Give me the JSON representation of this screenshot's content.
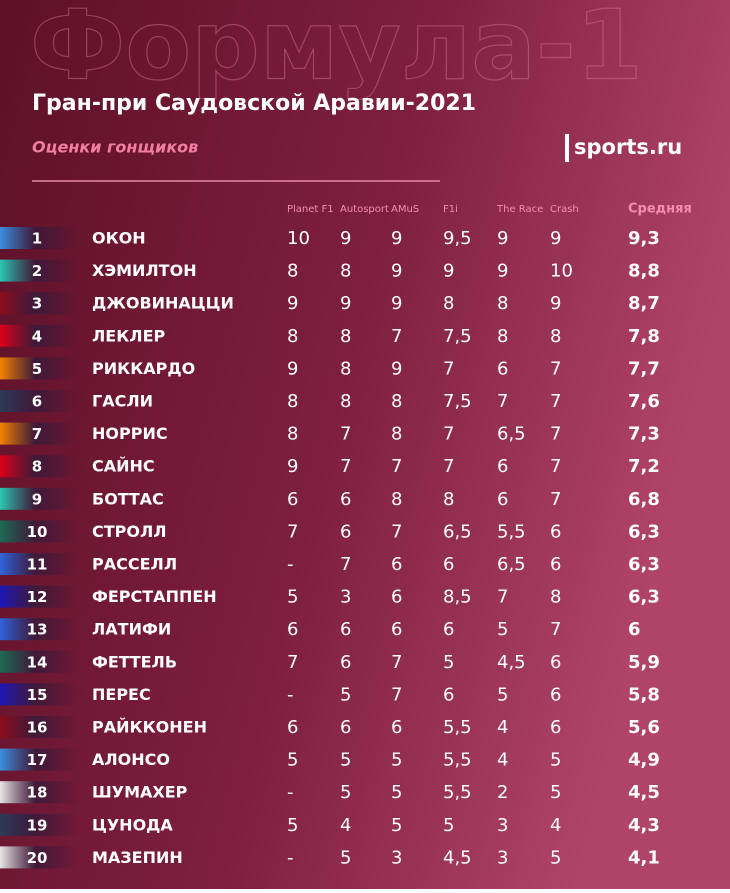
{
  "header": {
    "watermark": "Формула-1",
    "title": "Гран-при Саудовской Аравии-2021",
    "subtitle": "Оценки гонщиков",
    "logo": "sports.ru"
  },
  "table": {
    "columns": [
      "Planet F1",
      "Autosport",
      "AMuS",
      "F1i",
      "The Race",
      "Crash"
    ],
    "average_header": "Средняя",
    "rows": [
      {
        "rank": "1",
        "name": "ОКОН",
        "scores": [
          "10",
          "9",
          "9",
          "9,5",
          "9",
          "9"
        ],
        "average": "9,3",
        "color": "#3d8fe0"
      },
      {
        "rank": "2",
        "name": "ХЭМИЛТОН",
        "scores": [
          "8",
          "8",
          "9",
          "9",
          "9",
          "10"
        ],
        "average": "8,8",
        "color": "#2cc7b2"
      },
      {
        "rank": "3",
        "name": "ДЖОВИНАЦЦИ",
        "scores": [
          "9",
          "9",
          "9",
          "8",
          "8",
          "9"
        ],
        "average": "8,7",
        "color": "#8e0c1c"
      },
      {
        "rank": "4",
        "name": "ЛЕКЛЕР",
        "scores": [
          "8",
          "8",
          "7",
          "7,5",
          "8",
          "8"
        ],
        "average": "7,8",
        "color": "#dc0018"
      },
      {
        "rank": "5",
        "name": "РИККАРДО",
        "scores": [
          "9",
          "8",
          "9",
          "7",
          "6",
          "7"
        ],
        "average": "7,7",
        "color": "#f58300"
      },
      {
        "rank": "6",
        "name": "ГАСЛИ",
        "scores": [
          "8",
          "8",
          "8",
          "7,5",
          "7",
          "7"
        ],
        "average": "7,6",
        "color": "#2b3a58"
      },
      {
        "rank": "7",
        "name": "НОРРИС",
        "scores": [
          "8",
          "7",
          "8",
          "7",
          "6,5",
          "7"
        ],
        "average": "7,3",
        "color": "#f58300"
      },
      {
        "rank": "8",
        "name": "САЙНС",
        "scores": [
          "9",
          "7",
          "7",
          "7",
          "6",
          "7"
        ],
        "average": "7,2",
        "color": "#dc0018"
      },
      {
        "rank": "9",
        "name": "БОТТАС",
        "scores": [
          "6",
          "6",
          "8",
          "8",
          "6",
          "7"
        ],
        "average": "6,8",
        "color": "#2cc7b2"
      },
      {
        "rank": "10",
        "name": "СТРОЛЛ",
        "scores": [
          "7",
          "6",
          "7",
          "6,5",
          "5,5",
          "6"
        ],
        "average": "6,3",
        "color": "#1c6b55"
      },
      {
        "rank": "11",
        "name": "РАССЕЛЛ",
        "scores": [
          "-",
          "7",
          "6",
          "6",
          "6,5",
          "6"
        ],
        "average": "6,3",
        "color": "#2f63dc"
      },
      {
        "rank": "12",
        "name": "ФЕРСТАППЕН",
        "scores": [
          "5",
          "3",
          "6",
          "8,5",
          "7",
          "8"
        ],
        "average": "6,3",
        "color": "#1d16b8"
      },
      {
        "rank": "13",
        "name": "ЛАТИФИ",
        "scores": [
          "6",
          "6",
          "6",
          "6",
          "5",
          "7"
        ],
        "average": "6",
        "color": "#2f63dc"
      },
      {
        "rank": "14",
        "name": "ФЕТТЕЛЬ",
        "scores": [
          "7",
          "6",
          "7",
          "5",
          "4,5",
          "6"
        ],
        "average": "5,9",
        "color": "#1c6b55"
      },
      {
        "rank": "15",
        "name": "ПЕРЕС",
        "scores": [
          "-",
          "5",
          "7",
          "6",
          "5",
          "6"
        ],
        "average": "5,8",
        "color": "#1d16b8"
      },
      {
        "rank": "16",
        "name": "РАЙККОНЕН",
        "scores": [
          "6",
          "6",
          "6",
          "5,5",
          "4",
          "6"
        ],
        "average": "5,6",
        "color": "#8e0c1c"
      },
      {
        "rank": "17",
        "name": "АЛОНСО",
        "scores": [
          "5",
          "5",
          "5",
          "5,5",
          "4",
          "5"
        ],
        "average": "4,9",
        "color": "#3d8fe0"
      },
      {
        "rank": "18",
        "name": "ШУМАХЕР",
        "scores": [
          "-",
          "5",
          "5",
          "5,5",
          "2",
          "5"
        ],
        "average": "4,5",
        "color": "#e6e6e6"
      },
      {
        "rank": "19",
        "name": "ЦУНОДА",
        "scores": [
          "5",
          "4",
          "5",
          "5",
          "3",
          "4"
        ],
        "average": "4,3",
        "color": "#2b3a58"
      },
      {
        "rank": "20",
        "name": "МАЗЕПИН",
        "scores": [
          "-",
          "5",
          "3",
          "4,5",
          "3",
          "5"
        ],
        "average": "4,1",
        "color": "#e6e6e6"
      }
    ]
  }
}
